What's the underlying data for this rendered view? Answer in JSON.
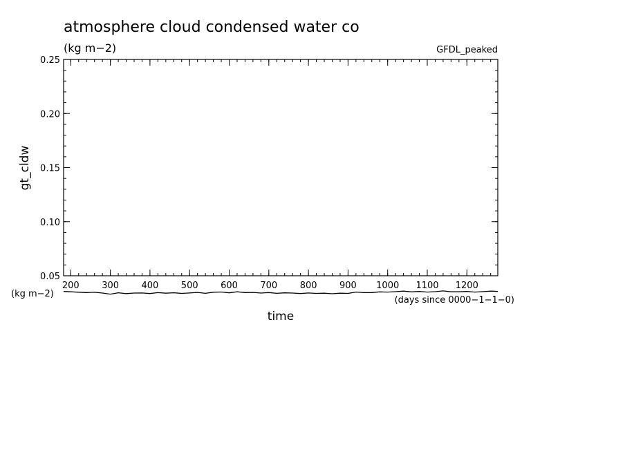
{
  "chart_data": {
    "type": "line",
    "title": "atmosphere cloud condensed water co",
    "units": "(kg m−2)",
    "dataset": "GFDL_peaked",
    "ylabel": "gt_cldw",
    "xlabel": "time",
    "x_units_left": "(kg m−2)",
    "x_units_right": "(days since 0000−1−1−0)",
    "ylim": [
      0.05,
      0.25
    ],
    "xlim": [
      182,
      1278
    ],
    "yticks": [
      0.05,
      0.1,
      0.15,
      0.2,
      0.25
    ],
    "ytick_labels": [
      "0.05",
      "0.10",
      "0.15",
      "0.20",
      "0.25"
    ],
    "xticks": [
      200,
      300,
      400,
      500,
      600,
      700,
      800,
      900,
      1000,
      1100,
      1200
    ],
    "xtick_labels": [
      "200",
      "300",
      "400",
      "500",
      "600",
      "700",
      "800",
      "900",
      "1000",
      "1100",
      "1200"
    ],
    "grid": false,
    "series": [
      {
        "x": [
          182,
          200,
          220,
          240,
          260,
          280,
          300,
          320,
          340,
          360,
          380,
          400,
          420,
          440,
          460,
          480,
          500,
          520,
          540,
          560,
          580,
          600,
          620,
          640,
          660,
          680,
          700,
          720,
          740,
          760,
          780,
          800,
          820,
          840,
          860,
          880,
          900,
          920,
          940,
          960,
          980,
          1000,
          1020,
          1040,
          1060,
          1080,
          1100,
          1120,
          1140,
          1160,
          1180,
          1200,
          1220,
          1240,
          1260,
          1278
        ],
        "y": [
          0.0355,
          0.0352,
          0.0348,
          0.0345,
          0.0347,
          0.034,
          0.033,
          0.0343,
          0.0335,
          0.034,
          0.0341,
          0.0336,
          0.0344,
          0.0339,
          0.0343,
          0.0337,
          0.0341,
          0.0346,
          0.0338,
          0.0348,
          0.035,
          0.0342,
          0.0352,
          0.0345,
          0.0346,
          0.034,
          0.0345,
          0.0338,
          0.0342,
          0.034,
          0.0336,
          0.0341,
          0.0337,
          0.0339,
          0.0334,
          0.0339,
          0.0337,
          0.0349,
          0.0344,
          0.0345,
          0.0351,
          0.0349,
          0.0353,
          0.0358,
          0.0351,
          0.0355,
          0.0349,
          0.0353,
          0.036,
          0.0352,
          0.0352,
          0.0355,
          0.0349,
          0.0353,
          0.0358,
          0.0355
        ]
      }
    ]
  }
}
